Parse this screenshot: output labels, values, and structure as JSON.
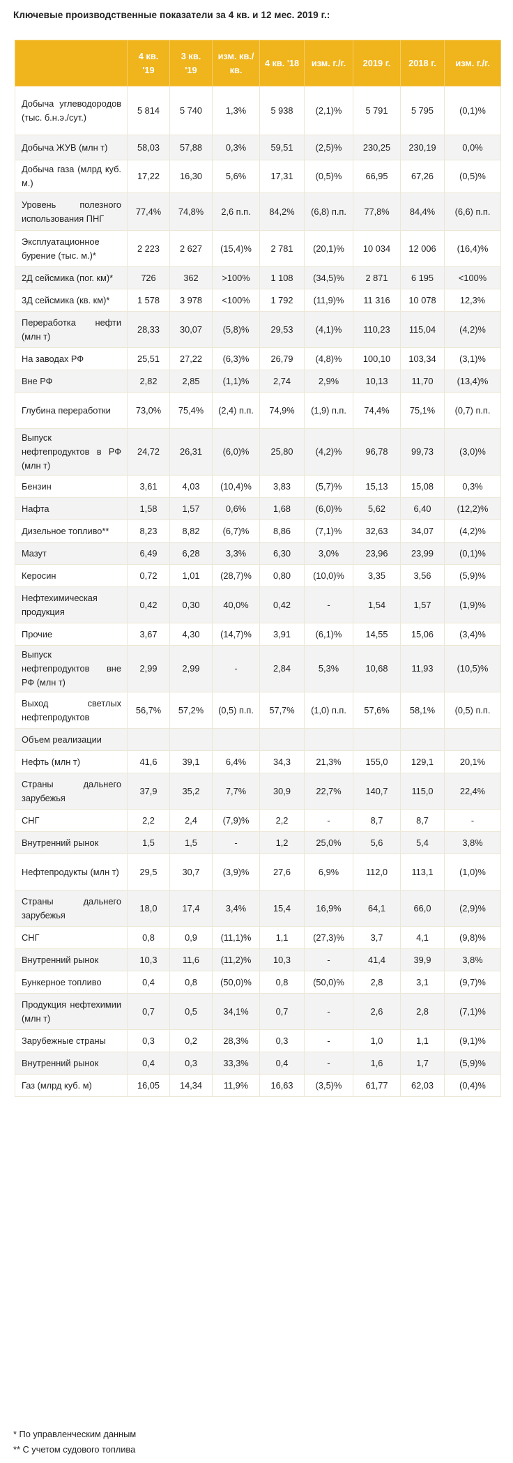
{
  "title": "Ключевые производственные показатели за 4 кв. и 12 мес. 2019 г.:",
  "table": {
    "headers": [
      "",
      "4 кв. '19",
      "3 кв. '19",
      "изм. кв./кв.",
      "4 кв. '18",
      "изм. г./г.",
      "2019 г.",
      "2018 г.",
      "изм. г./г."
    ],
    "rows": [
      {
        "label": "Добыча углеводородов (тыс. б.н.э./сут.)",
        "values": [
          "5 814",
          "5 740",
          "1,3%",
          "5 938",
          "(2,1)%",
          "5 791",
          "5 795",
          "(0,1)%"
        ]
      },
      {
        "label": "Добыча ЖУВ (млн т)",
        "values": [
          "58,03",
          "57,88",
          "0,3%",
          "59,51",
          "(2,5)%",
          "230,25",
          "230,19",
          "0,0%"
        ]
      },
      {
        "label": "Добыча газа (млрд куб. м.)",
        "values": [
          "17,22",
          "16,30",
          "5,6%",
          "17,31",
          "(0,5)%",
          "66,95",
          "67,26",
          "(0,5)%"
        ]
      },
      {
        "label": "Уровень полезного использования ПНГ",
        "values": [
          "77,4%",
          "74,8%",
          "2,6 п.п.",
          "84,2%",
          "(6,8) п.п.",
          "77,8%",
          "84,4%",
          "(6,6) п.п."
        ]
      },
      {
        "label": "Эксплуатационное бурение (тыс. м.)*",
        "values": [
          "2 223",
          "2 627",
          "(15,4)%",
          "2 781",
          "(20,1)%",
          "10 034",
          "12 006",
          "(16,4)%"
        ]
      },
      {
        "label": "2Д сейсмика (пог. км)*",
        "values": [
          "726",
          "362",
          ">100%",
          "1 108",
          "(34,5)%",
          "2 871",
          "6 195",
          "<100%"
        ]
      },
      {
        "label": "3Д сейсмика (кв. км)*",
        "values": [
          "1 578",
          "3 978",
          "<100%",
          "1 792",
          "(11,9)%",
          "11 316",
          "10 078",
          "12,3%"
        ]
      },
      {
        "label": "Переработка нефти (млн т)",
        "values": [
          "28,33",
          "30,07",
          "(5,8)%",
          "29,53",
          "(4,1)%",
          "110,23",
          "115,04",
          "(4,2)%"
        ]
      },
      {
        "label": "На заводах РФ",
        "values": [
          "25,51",
          "27,22",
          "(6,3)%",
          "26,79",
          "(4,8)%",
          "100,10",
          "103,34",
          "(3,1)%"
        ]
      },
      {
        "label": "Вне РФ",
        "values": [
          "2,82",
          "2,85",
          "(1,1)%",
          "2,74",
          "2,9%",
          "10,13",
          "11,70",
          "(13,4)%"
        ]
      },
      {
        "label": "Глубина переработки",
        "values": [
          "73,0%",
          "75,4%",
          "(2,4) п.п.",
          "74,9%",
          "(1,9) п.п.",
          "74,4%",
          "75,1%",
          "(0,7) п.п."
        ]
      },
      {
        "label": "Выпуск нефтепродуктов в РФ (млн т)",
        "values": [
          "24,72",
          "26,31",
          "(6,0)%",
          "25,80",
          "(4,2)%",
          "96,78",
          "99,73",
          "(3,0)%"
        ]
      },
      {
        "label": "Бензин",
        "values": [
          "3,61",
          "4,03",
          "(10,4)%",
          "3,83",
          "(5,7)%",
          "15,13",
          "15,08",
          "0,3%"
        ]
      },
      {
        "label": "Нафта",
        "values": [
          "1,58",
          "1,57",
          "0,6%",
          "1,68",
          "(6,0)%",
          "5,62",
          "6,40",
          "(12,2)%"
        ]
      },
      {
        "label": "Дизельное топливо**",
        "values": [
          "8,23",
          "8,82",
          "(6,7)%",
          "8,86",
          "(7,1)%",
          "32,63",
          "34,07",
          "(4,2)%"
        ]
      },
      {
        "label": "Мазут",
        "values": [
          "6,49",
          "6,28",
          "3,3%",
          "6,30",
          "3,0%",
          "23,96",
          "23,99",
          "(0,1)%"
        ]
      },
      {
        "label": "Керосин",
        "values": [
          "0,72",
          "1,01",
          "(28,7)%",
          "0,80",
          "(10,0)%",
          "3,35",
          "3,56",
          "(5,9)%"
        ]
      },
      {
        "label": "Нефтехимическая продукция",
        "values": [
          "0,42",
          "0,30",
          "40,0%",
          "0,42",
          "-",
          "1,54",
          "1,57",
          "(1,9)%"
        ]
      },
      {
        "label": "Прочие",
        "values": [
          "3,67",
          "4,30",
          "(14,7)%",
          "3,91",
          "(6,1)%",
          "14,55",
          "15,06",
          "(3,4)%"
        ]
      },
      {
        "label": "Выпуск нефтепродуктов вне РФ (млн т)",
        "values": [
          "2,99",
          "2,99",
          "-",
          "2,84",
          "5,3%",
          "10,68",
          "11,93",
          "(10,5)%"
        ]
      },
      {
        "label": "Выход светлых нефтепродуктов",
        "values": [
          "56,7%",
          "57,2%",
          "(0,5) п.п.",
          "57,7%",
          "(1,0) п.п.",
          "57,6%",
          "58,1%",
          "(0,5) п.п."
        ]
      },
      {
        "label": "Объем реализации",
        "values": [
          "",
          "",
          "",
          "",
          "",
          "",
          "",
          ""
        ]
      },
      {
        "label": "Нефть (млн т)",
        "values": [
          "41,6",
          "39,1",
          "6,4%",
          "34,3",
          "21,3%",
          "155,0",
          "129,1",
          "20,1%"
        ]
      },
      {
        "label": "Страны дальнего зарубежья",
        "values": [
          "37,9",
          "35,2",
          "7,7%",
          "30,9",
          "22,7%",
          "140,7",
          "115,0",
          "22,4%"
        ]
      },
      {
        "label": "СНГ",
        "values": [
          "2,2",
          "2,4",
          "(7,9)%",
          "2,2",
          "-",
          "8,7",
          "8,7",
          "-"
        ]
      },
      {
        "label": "Внутренний рынок",
        "values": [
          "1,5",
          "1,5",
          "-",
          "1,2",
          "25,0%",
          "5,6",
          "5,4",
          "3,8%"
        ]
      },
      {
        "label": "Нефтепродукты (млн т)",
        "values": [
          "29,5",
          "30,7",
          "(3,9)%",
          "27,6",
          "6,9%",
          "112,0",
          "113,1",
          "(1,0)%"
        ]
      },
      {
        "label": "Страны дальнего зарубежья",
        "values": [
          "18,0",
          "17,4",
          "3,4%",
          "15,4",
          "16,9%",
          "64,1",
          "66,0",
          "(2,9)%"
        ]
      },
      {
        "label": "СНГ",
        "values": [
          "0,8",
          "0,9",
          "(11,1)%",
          "1,1",
          "(27,3)%",
          "3,7",
          "4,1",
          "(9,8)%"
        ]
      },
      {
        "label": "Внутренний рынок",
        "values": [
          "10,3",
          "11,6",
          "(11,2)%",
          "10,3",
          "-",
          "41,4",
          "39,9",
          "3,8%"
        ]
      },
      {
        "label": "Бункерное топливо",
        "values": [
          "0,4",
          "0,8",
          "(50,0)%",
          "0,8",
          "(50,0)%",
          "2,8",
          "3,1",
          "(9,7)%"
        ]
      },
      {
        "label": "Продукция нефтехимии (млн т)",
        "values": [
          "0,7",
          "0,5",
          "34,1%",
          "0,7",
          "-",
          "2,6",
          "2,8",
          "(7,1)%"
        ]
      },
      {
        "label": "Зарубежные страны",
        "values": [
          "0,3",
          "0,2",
          "28,3%",
          "0,3",
          "-",
          "1,0",
          "1,1",
          "(9,1)%"
        ]
      },
      {
        "label": "Внутренний рынок",
        "values": [
          "0,4",
          "0,3",
          "33,3%",
          "0,4",
          "-",
          "1,6",
          "1,7",
          "(5,9)%"
        ]
      },
      {
        "label": "Газ (млрд куб. м)",
        "values": [
          "16,05",
          "14,34",
          "11,9%",
          "16,63",
          "(3,5)%",
          "61,77",
          "62,03",
          "(0,4)%"
        ]
      }
    ]
  },
  "footnotes": [
    "* По управленческим данным",
    "** С учетом судового топлива"
  ],
  "colors": {
    "header_bg": "#f0b41c",
    "header_text": "#ffffff",
    "stripe": "#f3f3f3"
  }
}
